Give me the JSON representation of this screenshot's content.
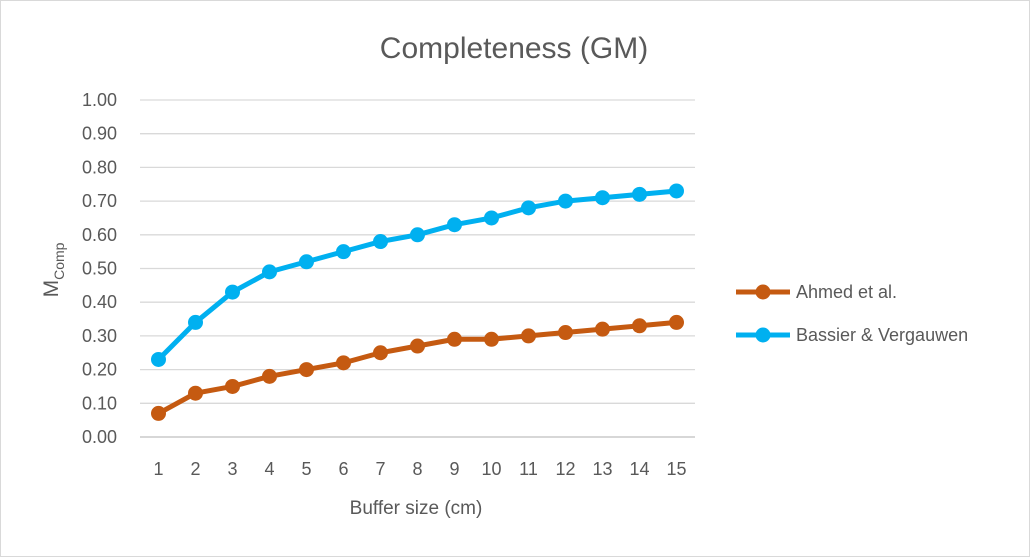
{
  "chart_data": {
    "type": "line",
    "title": "Completeness (GM)",
    "xlabel": "Buffer size (cm)",
    "ylabel": {
      "main": "M",
      "sub": "Comp"
    },
    "categories": [
      "1",
      "2",
      "3",
      "4",
      "5",
      "6",
      "7",
      "8",
      "9",
      "10",
      "11",
      "12",
      "13",
      "14",
      "15"
    ],
    "ylim": [
      0,
      1
    ],
    "yticks": [
      "0.00",
      "0.10",
      "0.20",
      "0.30",
      "0.40",
      "0.50",
      "0.60",
      "0.70",
      "0.80",
      "0.90",
      "1.00"
    ],
    "grid": true,
    "legend_position": "right",
    "series": [
      {
        "name": "Ahmed et al.",
        "color": "#c55a11",
        "values": [
          0.07,
          0.13,
          0.15,
          0.18,
          0.2,
          0.22,
          0.25,
          0.27,
          0.29,
          0.29,
          0.3,
          0.31,
          0.32,
          0.33,
          0.34
        ]
      },
      {
        "name": "Bassier & Vergauwen",
        "color": "#00b0f0",
        "values": [
          0.23,
          0.34,
          0.43,
          0.49,
          0.52,
          0.55,
          0.58,
          0.6,
          0.63,
          0.65,
          0.68,
          0.7,
          0.71,
          0.72,
          0.73
        ]
      }
    ]
  }
}
